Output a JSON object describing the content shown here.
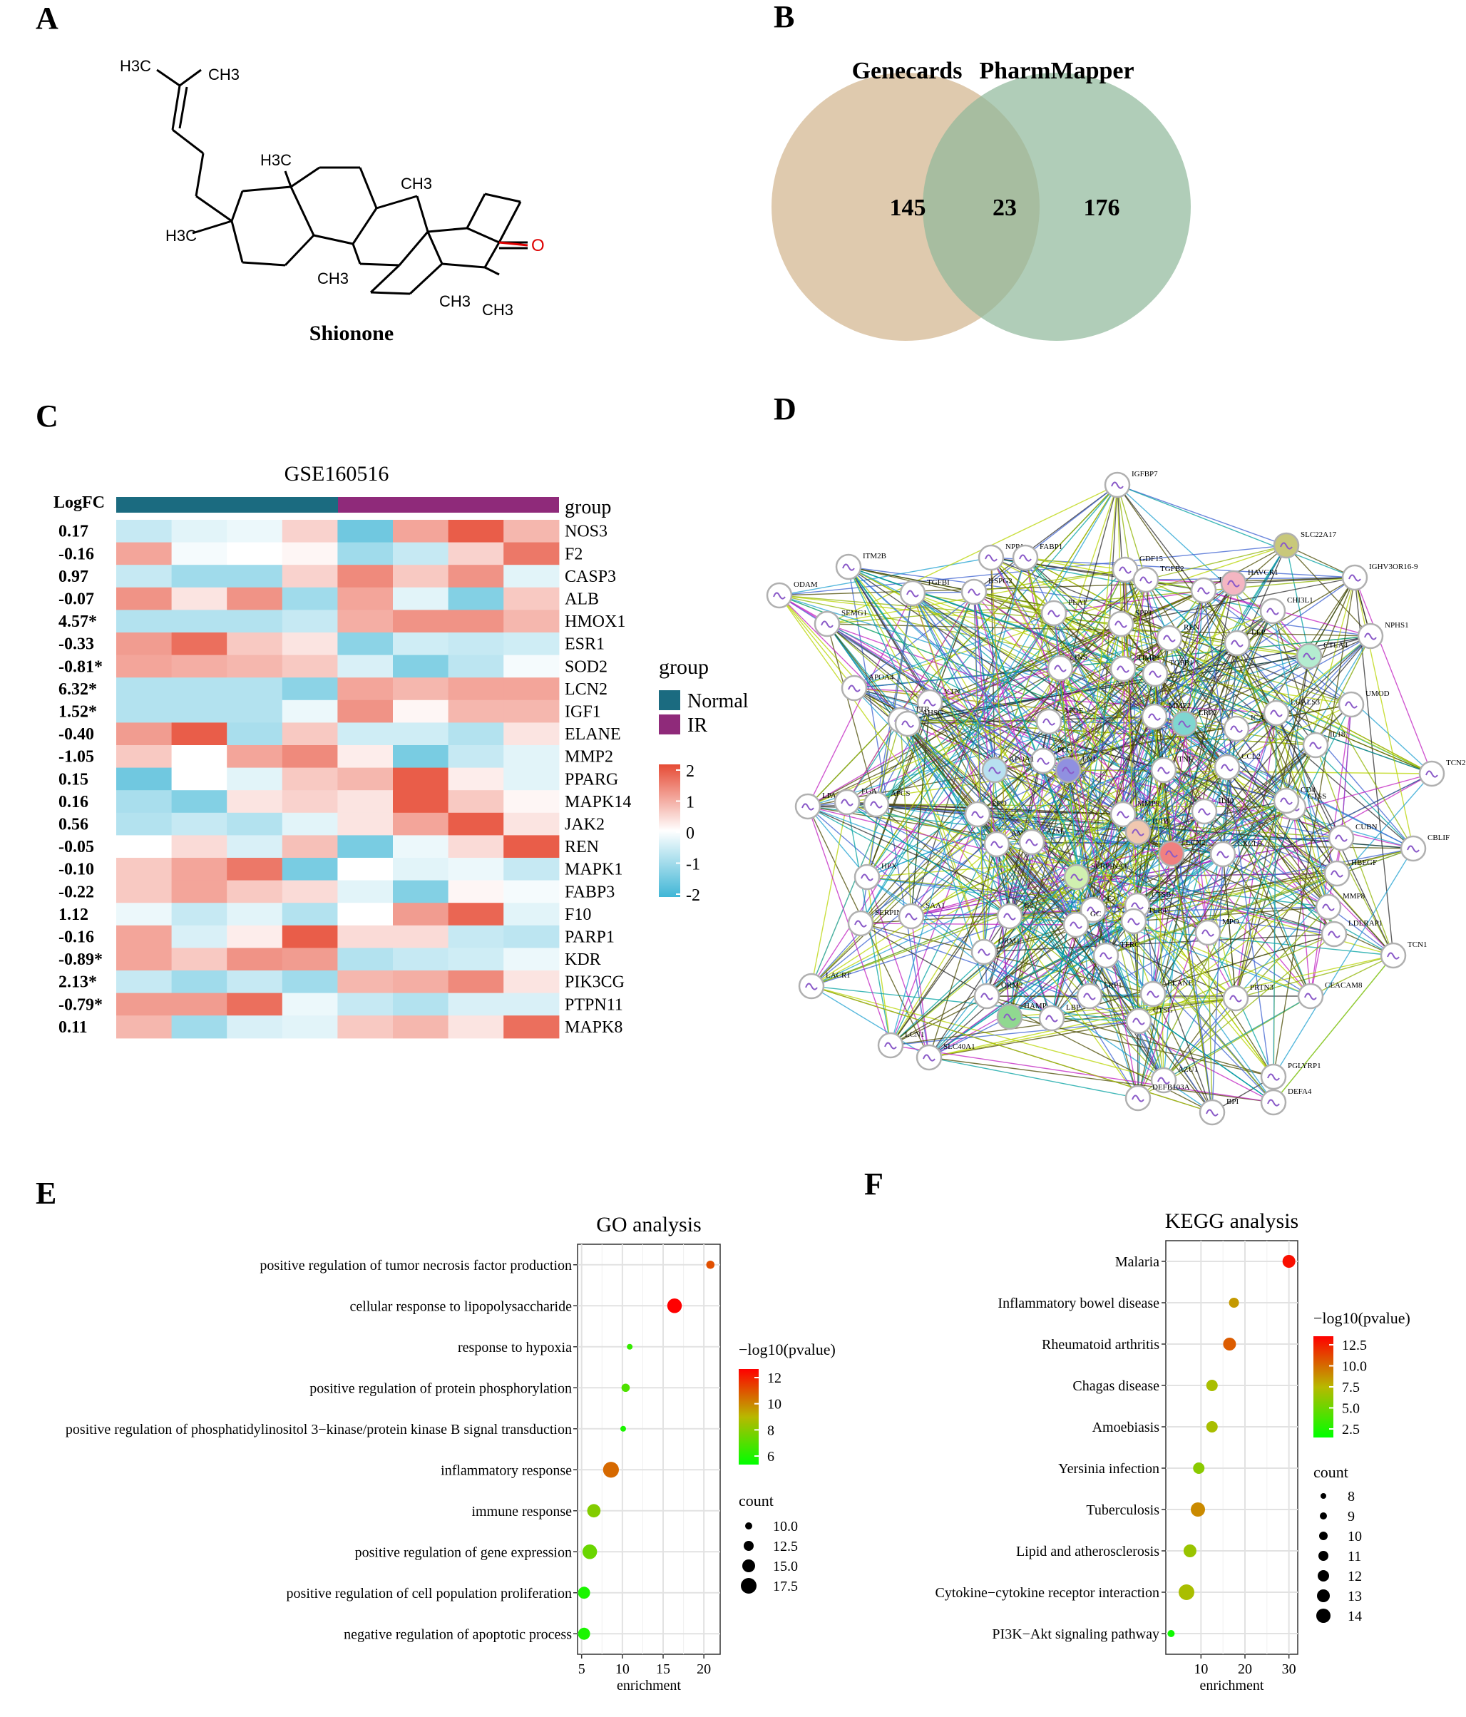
{
  "panels": {
    "A": {
      "letter": "A",
      "molecule_name": "Shionone",
      "groups": {
        "h3c_top_left": "H3C",
        "ch3_top_right": "CH3",
        "h3c_mid": "H3C",
        "ch3_mid_right": "CH3",
        "h3c_left": "H3C",
        "ch3_bottom_1": "CH3",
        "ch3_bottom_2": "CH3",
        "ch3_bottom_3": "CH3",
        "oxygen": "O"
      }
    },
    "B": {
      "letter": "B",
      "left_label": "Genecards",
      "right_label": "PharmMapper",
      "left_only": "145",
      "overlap": "23",
      "right_only": "176",
      "left_color": "#d2b48c",
      "right_color": "#8fb89a"
    },
    "C": {
      "letter": "C",
      "title": "GSE160516",
      "logfc_header": "LogFC",
      "group_header": "group",
      "legend_title": "group",
      "legend_normal": "Normal",
      "legend_ir": "IR",
      "normal_color": "#1b6b80",
      "ir_color": "#8f2a7a",
      "scale_ticks": [
        "2",
        "1",
        "0",
        "-1",
        "-2"
      ],
      "rows": [
        {
          "logfc": "0.17",
          "gene": "NOS3",
          "values": [
            -0.6,
            -0.3,
            -0.2,
            0.5,
            -1.5,
            1.0,
            1.8,
            0.8
          ]
        },
        {
          "logfc": "-0.16",
          "gene": "F2",
          "values": [
            1.0,
            -0.1,
            0.0,
            0.1,
            -1.0,
            -0.6,
            0.5,
            1.5
          ]
        },
        {
          "logfc": "0.97",
          "gene": "CASP3",
          "values": [
            -0.6,
            -1.0,
            -1.0,
            0.5,
            1.3,
            0.6,
            1.2,
            -0.3
          ]
        },
        {
          "logfc": "-0.07",
          "gene": "ALB",
          "values": [
            1.2,
            0.3,
            1.2,
            -1.0,
            1.0,
            -0.3,
            -1.3,
            0.6
          ]
        },
        {
          "logfc": "4.57*",
          "gene": "HMOX1",
          "values": [
            -0.8,
            -0.8,
            -0.8,
            -0.6,
            0.9,
            1.2,
            1.2,
            0.8
          ]
        },
        {
          "logfc": "-0.33",
          "gene": "ESR1",
          "values": [
            1.1,
            1.6,
            0.6,
            0.3,
            -1.2,
            -0.5,
            -0.6,
            -0.5
          ]
        },
        {
          "logfc": "-0.81*",
          "gene": "SOD2",
          "values": [
            1.0,
            0.9,
            0.8,
            0.6,
            -0.4,
            -1.3,
            -0.7,
            -0.1
          ]
        },
        {
          "logfc": "6.32*",
          "gene": "LCN2",
          "values": [
            -0.8,
            -0.8,
            -0.8,
            -1.2,
            1.0,
            0.8,
            1.0,
            1.0
          ]
        },
        {
          "logfc": "1.52*",
          "gene": "IGF1",
          "values": [
            -0.8,
            -0.8,
            -0.8,
            -0.2,
            1.2,
            0.1,
            0.8,
            0.8
          ]
        },
        {
          "logfc": "-0.40",
          "gene": "ELANE",
          "values": [
            1.1,
            1.8,
            -0.9,
            0.6,
            -0.5,
            -0.5,
            -0.8,
            0.3
          ]
        },
        {
          "logfc": "-1.05",
          "gene": "MMP2",
          "values": [
            0.6,
            0.0,
            1.0,
            1.3,
            0.2,
            -1.4,
            -0.6,
            -0.3
          ]
        },
        {
          "logfc": "0.15",
          "gene": "PPARG",
          "values": [
            -1.5,
            0.0,
            -0.3,
            0.6,
            0.8,
            1.8,
            0.2,
            -0.3
          ]
        },
        {
          "logfc": "0.16",
          "gene": "MAPK14",
          "values": [
            -0.9,
            -1.3,
            0.3,
            0.5,
            0.3,
            1.8,
            0.6,
            0.1
          ]
        },
        {
          "logfc": "0.56",
          "gene": "JAK2",
          "values": [
            -0.8,
            -0.6,
            -0.8,
            -0.3,
            0.3,
            1.0,
            1.8,
            0.3
          ]
        },
        {
          "logfc": "-0.05",
          "gene": "REN",
          "values": [
            0.0,
            0.4,
            -0.4,
            0.7,
            -1.4,
            -0.2,
            0.4,
            1.8
          ]
        },
        {
          "logfc": "-0.10",
          "gene": "MAPK1",
          "values": [
            0.6,
            1.0,
            1.5,
            -1.4,
            0.0,
            -0.3,
            -0.2,
            -0.6
          ]
        },
        {
          "logfc": "-0.22",
          "gene": "FABP3",
          "values": [
            0.6,
            1.0,
            0.6,
            0.4,
            -0.3,
            -1.3,
            0.1,
            -0.1
          ]
        },
        {
          "logfc": "1.12",
          "gene": "F10",
          "values": [
            -0.2,
            -0.6,
            -0.3,
            -0.8,
            0.0,
            1.1,
            1.7,
            -0.3
          ]
        },
        {
          "logfc": "-0.16",
          "gene": "PARP1",
          "values": [
            1.0,
            -0.4,
            0.2,
            1.8,
            0.4,
            0.4,
            -0.6,
            -0.7
          ]
        },
        {
          "logfc": "-0.89*",
          "gene": "KDR",
          "values": [
            1.0,
            0.6,
            1.2,
            1.1,
            -0.8,
            -0.6,
            -0.5,
            -0.2
          ]
        },
        {
          "logfc": "2.13*",
          "gene": "PIK3CG",
          "values": [
            -0.6,
            -1.0,
            -0.6,
            -1.0,
            0.8,
            0.9,
            1.3,
            0.3
          ]
        },
        {
          "logfc": "-0.79*",
          "gene": "PTPN11",
          "values": [
            1.1,
            1.1,
            1.6,
            -0.2,
            -0.6,
            -0.8,
            -0.4,
            -0.4
          ]
        },
        {
          "logfc": "0.11",
          "gene": "MAPK8",
          "values": [
            0.8,
            -1.0,
            -0.4,
            -0.3,
            0.6,
            0.8,
            0.3,
            1.6
          ]
        }
      ]
    },
    "D": {
      "letter": "D",
      "nodes": [
        {
          "label": "IGFBP7",
          "fill": "#ffffff"
        },
        {
          "label": "ITM2B",
          "fill": "#ffffff"
        },
        {
          "label": "NPPA",
          "fill": "#ffffff"
        },
        {
          "label": "FABP1",
          "fill": "#ffffff"
        },
        {
          "label": "GDF15",
          "fill": "#ffffff"
        },
        {
          "label": "TGFB2",
          "fill": "#ffffff"
        },
        {
          "label": "SLC22A17",
          "fill": "#c8c87a"
        },
        {
          "label": "IGHV3OR16-9",
          "fill": "#ffffff"
        },
        {
          "label": "ODAM",
          "fill": "#ffffff"
        },
        {
          "label": "TGFBI",
          "fill": "#ffffff"
        },
        {
          "label": "HSPG2",
          "fill": "#ffffff"
        },
        {
          "label": "TIMP2",
          "fill": "#ffffff"
        },
        {
          "label": "HAVCR1",
          "fill": "#f4b6c2"
        },
        {
          "label": "CHI3L1",
          "fill": "#ffffff"
        },
        {
          "label": "NPHS1",
          "fill": "#ffffff"
        },
        {
          "label": "PLAT",
          "fill": "#ffffff"
        },
        {
          "label": "SPP1",
          "fill": "#ffffff"
        },
        {
          "label": "REN",
          "fill": "#ffffff"
        },
        {
          "label": "SEMG1",
          "fill": "#ffffff"
        },
        {
          "label": "LEP",
          "fill": "#ffffff"
        },
        {
          "label": "CTLA4",
          "fill": "#b4ecd0"
        },
        {
          "label": "INS",
          "fill": "#ffffff"
        },
        {
          "label": "TIMP1",
          "fill": "#ffffff"
        },
        {
          "label": "TGFB1",
          "fill": "#ffffff"
        },
        {
          "label": "APOA4",
          "fill": "#ffffff"
        },
        {
          "label": "VTN",
          "fill": "#ffffff"
        },
        {
          "label": "UMOD",
          "fill": "#ffffff"
        },
        {
          "label": "TTR",
          "fill": "#ffffff"
        },
        {
          "label": "APOE",
          "fill": "#ffffff"
        },
        {
          "label": "MMP2",
          "fill": "#ffffff"
        },
        {
          "label": "LRP2",
          "fill": "#7fd6d0"
        },
        {
          "label": "ICAM1",
          "fill": "#ffffff"
        },
        {
          "label": "LGALS3",
          "fill": "#ffffff"
        },
        {
          "label": "AHSG",
          "fill": "#ffffff"
        },
        {
          "label": "IL18",
          "fill": "#ffffff"
        },
        {
          "label": "PLG",
          "fill": "#ffffff"
        },
        {
          "label": "FN1",
          "fill": "#9090e0"
        },
        {
          "label": "TNF",
          "fill": "#ffffff"
        },
        {
          "label": "CCL2",
          "fill": "#ffffff"
        },
        {
          "label": "TCN2",
          "fill": "#ffffff"
        },
        {
          "label": "APCS",
          "fill": "#ffffff"
        },
        {
          "label": "APOA1",
          "fill": "#b8e0f0"
        },
        {
          "label": "CTSS",
          "fill": "#ffffff"
        },
        {
          "label": "LPA",
          "fill": "#ffffff"
        },
        {
          "label": "FGA",
          "fill": "#ffffff"
        },
        {
          "label": "CD4",
          "fill": "#ffffff"
        },
        {
          "label": "EPO",
          "fill": "#ffffff"
        },
        {
          "label": "MMP9",
          "fill": "#ffffff"
        },
        {
          "label": "IL10",
          "fill": "#ffffff"
        },
        {
          "label": "CUBN",
          "fill": "#ffffff"
        },
        {
          "label": "CBLIF",
          "fill": "#ffffff"
        },
        {
          "label": "AMBP",
          "fill": "#ffffff"
        },
        {
          "label": "A2M",
          "fill": "#ffffff"
        },
        {
          "label": "IL1B",
          "fill": "#f0c8b0"
        },
        {
          "label": "LCN2",
          "fill": "#f08080"
        },
        {
          "label": "CXCL8",
          "fill": "#ffffff"
        },
        {
          "label": "HBEGF",
          "fill": "#ffffff"
        },
        {
          "label": "HPX",
          "fill": "#ffffff"
        },
        {
          "label": "SERPINA1",
          "fill": "#d0f0b0"
        },
        {
          "label": "F2",
          "fill": "#ffffff"
        },
        {
          "label": "CTSB",
          "fill": "#ffffff"
        },
        {
          "label": "TLR4",
          "fill": "#ffffff"
        },
        {
          "label": "MPO",
          "fill": "#ffffff"
        },
        {
          "label": "MMP8",
          "fill": "#ffffff"
        },
        {
          "label": "SERPINA3",
          "fill": "#ffffff"
        },
        {
          "label": "SAA1",
          "fill": "#ffffff"
        },
        {
          "label": "C3",
          "fill": "#ffffff"
        },
        {
          "label": "GC",
          "fill": "#ffffff"
        },
        {
          "label": "LDLRAP1",
          "fill": "#ffffff"
        },
        {
          "label": "TCN1",
          "fill": "#ffffff"
        },
        {
          "label": "ORM1",
          "fill": "#ffffff"
        },
        {
          "label": "TFRC",
          "fill": "#ffffff"
        },
        {
          "label": "LACRT",
          "fill": "#ffffff"
        },
        {
          "label": "ORM2",
          "fill": "#ffffff"
        },
        {
          "label": "LRP1",
          "fill": "#ffffff"
        },
        {
          "label": "ELANE",
          "fill": "#ffffff"
        },
        {
          "label": "PRTN3",
          "fill": "#ffffff"
        },
        {
          "label": "CEACAM8",
          "fill": "#ffffff"
        },
        {
          "label": "HAMP",
          "fill": "#90d890"
        },
        {
          "label": "LBP",
          "fill": "#ffffff"
        },
        {
          "label": "CTSG",
          "fill": "#ffffff"
        },
        {
          "label": "LCN1",
          "fill": "#ffffff"
        },
        {
          "label": "SLC40A1",
          "fill": "#ffffff"
        },
        {
          "label": "PGLYRP1",
          "fill": "#ffffff"
        },
        {
          "label": "AZU1",
          "fill": "#ffffff"
        },
        {
          "label": "DEFB103A",
          "fill": "#ffffff"
        },
        {
          "label": "DEFA4",
          "fill": "#ffffff"
        },
        {
          "label": "BPI",
          "fill": "#ffffff"
        }
      ]
    },
    "E": {
      "letter": "E",
      "legend_color_title": "−log10(pvalue)",
      "legend_color_ticks": [
        "12",
        "10",
        "8",
        "6"
      ],
      "legend_size_title": "count",
      "legend_size_ticks": [
        "10.0",
        "12.5",
        "15.0",
        "17.5"
      ]
    },
    "F": {
      "letter": "F",
      "legend_color_title": "−log10(pvalue)",
      "legend_color_ticks": [
        "12.5",
        "10.0",
        "7.5",
        "5.0",
        "2.5"
      ],
      "legend_size_title": "count",
      "legend_size_ticks": [
        "8",
        "9",
        "10",
        "11",
        "12",
        "13",
        "14"
      ]
    }
  },
  "chart_data": [
    {
      "type": "heatmap",
      "title": "GSE160516",
      "rows": [
        "NOS3",
        "F2",
        "CASP3",
        "ALB",
        "HMOX1",
        "ESR1",
        "SOD2",
        "LCN2",
        "IGF1",
        "ELANE",
        "MMP2",
        "PPARG",
        "MAPK14",
        "JAK2",
        "REN",
        "MAPK1",
        "FABP3",
        "F10",
        "PARP1",
        "KDR",
        "PIK3CG",
        "PTPN11",
        "MAPK8"
      ],
      "column_groups": [
        "Normal",
        "Normal",
        "Normal",
        "Normal",
        "IR",
        "IR",
        "IR",
        "IR"
      ],
      "color_range": [
        -2,
        2
      ]
    },
    {
      "type": "scatter",
      "title": "GO analysis",
      "xlabel": "enrichment",
      "xlim": [
        4.5,
        22
      ],
      "xticks": [
        5,
        10,
        15,
        20
      ],
      "color_range": [
        6,
        13
      ],
      "size_range": [
        9,
        18
      ],
      "categories": [
        "positive regulation of tumor necrosis factor production",
        "cellular response to lipopolysaccharide",
        "response to hypoxia",
        "positive regulation of protein phosphorylation",
        "positive regulation of phosphatidylinositol 3−kinase/protein kinase B signal transduction",
        "inflammatory response",
        "immune response",
        "positive regulation of gene expression",
        "positive regulation of cell population proliferation",
        "negative regulation of apoptotic process"
      ],
      "x": [
        20.8,
        16.4,
        10.9,
        10.4,
        10.1,
        8.6,
        6.5,
        6.0,
        5.3,
        5.3
      ],
      "color": [
        11.5,
        13.0,
        7.0,
        7.5,
        6.5,
        11.0,
        8.5,
        8.0,
        6.5,
        6.5
      ],
      "count": [
        10,
        15,
        8,
        10,
        8,
        16,
        14,
        15,
        13,
        13
      ]
    },
    {
      "type": "scatter",
      "title": "KEGG analysis",
      "xlabel": "enrichment",
      "xlim": [
        2,
        32
      ],
      "xticks": [
        10,
        20,
        30
      ],
      "color_range": [
        1.5,
        13.5
      ],
      "size_range": [
        7,
        14
      ],
      "categories": [
        "Malaria",
        "Inflammatory bowel disease",
        "Rheumatoid arthritis",
        "Chagas disease",
        "Amoebiasis",
        "Yersinia infection",
        "Tuberculosis",
        "Lipid and atherosclerosis",
        "Cytokine−cytokine receptor interaction",
        "PI3K−Akt signaling pathway"
      ],
      "x": [
        30.0,
        17.5,
        16.5,
        12.5,
        12.5,
        9.5,
        9.3,
        7.5,
        6.7,
        3.2
      ],
      "color": [
        13.0,
        8.5,
        10.5,
        7.0,
        7.0,
        6.0,
        9.0,
        6.5,
        7.0,
        2.0
      ],
      "count": [
        11,
        9,
        11,
        10,
        10,
        10,
        12,
        11,
        13,
        7
      ]
    }
  ]
}
